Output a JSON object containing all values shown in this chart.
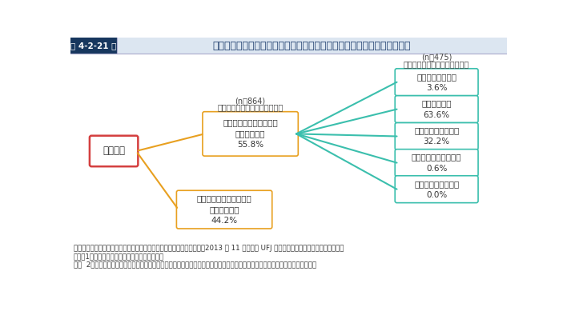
{
  "title": "第 4-2-21 図",
  "title_main": "他の自治体の中小企業・小規模事業者施策の活用状況、評価（市区町村）",
  "root_label": "市区町村",
  "root_color": "#d43f3f",
  "mid_box1_label": "施策の立案時に参考にし\nたことがある\n55.8%",
  "mid_box1_n_line1": "(n＝864)",
  "mid_box1_n_line2": "中小企業・小規模事業者施策を",
  "mid_box1_color": "#e8a020",
  "mid_box2_label": "施策の立案時に参考にし\nたことがない\n44.2%",
  "mid_box2_color": "#e8a020",
  "right_header_n": "(n＝475)",
  "right_header_text": "中小企業・小規模事業者施策を",
  "right_boxes": [
    {
      "label": "高く評価している\n3.6%"
    },
    {
      "label": "評価している\n63.6%"
    },
    {
      "label": "どちらとも言えない\n32.2%"
    },
    {
      "label": "あまり評価していない\n0.6%"
    },
    {
      "label": "全く評価していない\n0.0%"
    }
  ],
  "right_box_color": "#3bbfad",
  "footnote1": "資料：中小企業庁委託「自治体の中小企業支援の実態に関する調査」（2013 年 11 月、三菱 UFJ リサーチ＆コンサルティング（株））",
  "footnote2": "（注）1．市区町村には、政令指定都市を含む。",
  "footnote3": "　　  2．他の自治体とは、市区町村の場合は、市区町村が所属する都道府県、都道府県の場合は、都道府県内の市区町村を指す。",
  "bg_color": "#ffffff",
  "header_bg": "#dce6f1",
  "header_label_bg": "#17375e",
  "line_orange": "#e8a020",
  "line_teal": "#3bbfad",
  "text_dark": "#333333"
}
